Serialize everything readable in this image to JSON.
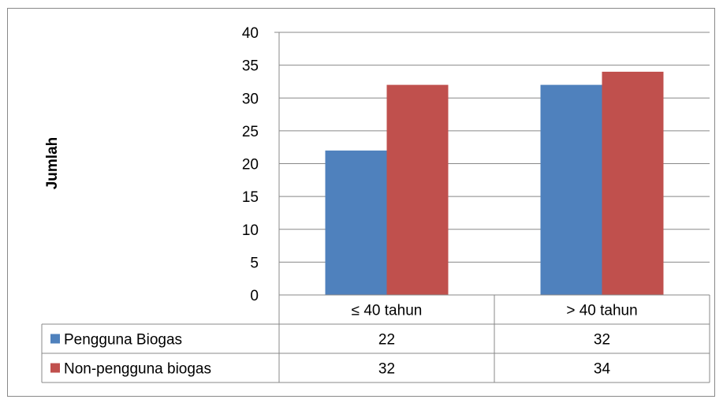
{
  "chart_data": {
    "type": "bar",
    "title": "",
    "xlabel": "",
    "ylabel": "Jumlah",
    "ylim": [
      0,
      40
    ],
    "yticks": [
      0,
      5,
      10,
      15,
      20,
      25,
      30,
      35,
      40
    ],
    "grid": true,
    "legend": "data-table-left",
    "categories": [
      "≤ 40 tahun",
      "> 40 tahun"
    ],
    "series": [
      {
        "name": "Pengguna Biogas",
        "values": [
          22,
          32
        ],
        "color": "#4f81bd"
      },
      {
        "name": "Non-pengguna biogas",
        "values": [
          32,
          34
        ],
        "color": "#c0504d"
      }
    ]
  }
}
